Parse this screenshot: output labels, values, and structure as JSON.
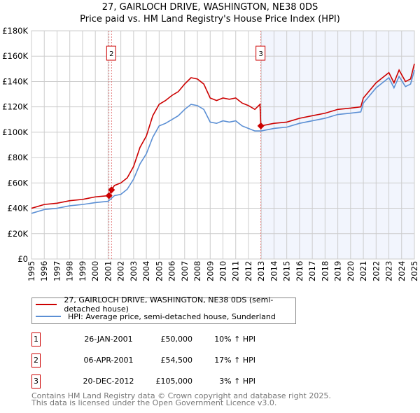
{
  "chart_data": {
    "type": "line",
    "title": "27, GAIRLOCH DRIVE, WASHINGTON, NE38 0DS",
    "subtitle": "Price paid vs. HM Land Registry's House Price Index (HPI)",
    "xlim": [
      1995,
      2025
    ],
    "ylim": [
      0,
      180000
    ],
    "y_ticks": [
      {
        "v": 0,
        "label": "£0"
      },
      {
        "v": 20000,
        "label": "£20K"
      },
      {
        "v": 40000,
        "label": "£40K"
      },
      {
        "v": 60000,
        "label": "£60K"
      },
      {
        "v": 80000,
        "label": "£80K"
      },
      {
        "v": 100000,
        "label": "£100K"
      },
      {
        "v": 120000,
        "label": "£120K"
      },
      {
        "v": 140000,
        "label": "£140K"
      },
      {
        "v": 160000,
        "label": "£160K"
      },
      {
        "v": 180000,
        "label": "£180K"
      }
    ],
    "x_ticks": [
      "1995",
      "1996",
      "1997",
      "1998",
      "1999",
      "2000",
      "2001",
      "2002",
      "2003",
      "2004",
      "2005",
      "2006",
      "2007",
      "2008",
      "2009",
      "2010",
      "2011",
      "2012",
      "2013",
      "2014",
      "2015",
      "2016",
      "2017",
      "2018",
      "2019",
      "2020",
      "2021",
      "2022",
      "2023",
      "2024",
      "2025"
    ],
    "grid": true,
    "shaded_from": 2012.97,
    "series": [
      {
        "name": "27, GAIRLOCH DRIVE, WASHINGTON, NE38 0DS (semi-detached house)",
        "color": "#cc0000",
        "points": [
          [
            1995,
            40
          ],
          [
            1996,
            43
          ],
          [
            1997,
            44
          ],
          [
            1998,
            46
          ],
          [
            1999,
            47
          ],
          [
            2000,
            49
          ],
          [
            2001.07,
            50
          ],
          [
            2001.27,
            54.5
          ],
          [
            2001.5,
            58
          ],
          [
            2002,
            60
          ],
          [
            2002.5,
            64
          ],
          [
            2003,
            73
          ],
          [
            2003.5,
            88
          ],
          [
            2004,
            97
          ],
          [
            2004.5,
            113
          ],
          [
            2005,
            122
          ],
          [
            2005.5,
            125
          ],
          [
            2006,
            129
          ],
          [
            2006.5,
            132
          ],
          [
            2007,
            138
          ],
          [
            2007.5,
            143
          ],
          [
            2008,
            142
          ],
          [
            2008.5,
            138
          ],
          [
            2009,
            127
          ],
          [
            2009.5,
            125
          ],
          [
            2010,
            127
          ],
          [
            2010.5,
            126
          ],
          [
            2011,
            127
          ],
          [
            2011.5,
            123
          ],
          [
            2012,
            121
          ],
          [
            2012.5,
            118
          ],
          [
            2012.9,
            122
          ],
          [
            2012.97,
            105
          ],
          [
            2014,
            107
          ],
          [
            2015,
            108
          ],
          [
            2016,
            111
          ],
          [
            2017,
            113
          ],
          [
            2018,
            115
          ],
          [
            2019,
            118
          ],
          [
            2020,
            119
          ],
          [
            2020.8,
            120
          ],
          [
            2021,
            127
          ],
          [
            2022,
            139
          ],
          [
            2022.5,
            143
          ],
          [
            2023,
            147
          ],
          [
            2023.4,
            139
          ],
          [
            2023.8,
            149
          ],
          [
            2024.3,
            140
          ],
          [
            2024.7,
            142
          ],
          [
            2025,
            154
          ]
        ]
      },
      {
        "name": "HPI: Average price, semi-detached house, Sunderland",
        "color": "#5b8fd4",
        "points": [
          [
            1995,
            36
          ],
          [
            1996,
            39
          ],
          [
            1997,
            40
          ],
          [
            1998,
            42
          ],
          [
            1999,
            43
          ],
          [
            2000,
            44.5
          ],
          [
            2001,
            45.5
          ],
          [
            2001.5,
            50
          ],
          [
            2002,
            51
          ],
          [
            2002.5,
            55
          ],
          [
            2003,
            63
          ],
          [
            2003.5,
            75
          ],
          [
            2004,
            83
          ],
          [
            2004.5,
            96
          ],
          [
            2005,
            105
          ],
          [
            2005.5,
            107
          ],
          [
            2006,
            110
          ],
          [
            2006.5,
            113
          ],
          [
            2007,
            118
          ],
          [
            2007.5,
            122
          ],
          [
            2008,
            121
          ],
          [
            2008.5,
            118
          ],
          [
            2009,
            108
          ],
          [
            2009.5,
            107
          ],
          [
            2010,
            109
          ],
          [
            2010.5,
            108
          ],
          [
            2011,
            109
          ],
          [
            2011.5,
            105
          ],
          [
            2012,
            103
          ],
          [
            2012.5,
            101
          ],
          [
            2013,
            101
          ],
          [
            2014,
            103
          ],
          [
            2015,
            104
          ],
          [
            2016,
            107
          ],
          [
            2017,
            109
          ],
          [
            2018,
            111
          ],
          [
            2019,
            114
          ],
          [
            2020,
            115
          ],
          [
            2020.8,
            116
          ],
          [
            2021,
            123
          ],
          [
            2022,
            135
          ],
          [
            2022.5,
            139
          ],
          [
            2023,
            143
          ],
          [
            2023.4,
            135
          ],
          [
            2023.8,
            144
          ],
          [
            2024.3,
            136
          ],
          [
            2024.7,
            138
          ],
          [
            2025,
            149
          ]
        ]
      }
    ],
    "sales": [
      {
        "id": "1",
        "x": 2001.07,
        "price": 50000,
        "date": "26-JAN-2001",
        "price_label": "£50,000",
        "hpi": "10% ↑ HPI"
      },
      {
        "id": "2",
        "x": 2001.27,
        "price": 54500,
        "date": "06-APR-2001",
        "price_label": "£54,500",
        "hpi": "17% ↑ HPI"
      },
      {
        "id": "3",
        "x": 2012.97,
        "price": 105000,
        "date": "20-DEC-2012",
        "price_label": "£105,000",
        "hpi": "3% ↑ HPI"
      }
    ]
  },
  "legend": {
    "property": "27, GAIRLOCH DRIVE, WASHINGTON, NE38 0DS (semi-detached house)",
    "hpi": "HPI: Average price, semi-detached house, Sunderland"
  },
  "footer": {
    "line1": "Contains HM Land Registry data © Crown copyright and database right 2025.",
    "line2": "This data is licensed under the Open Government Licence v3.0."
  }
}
